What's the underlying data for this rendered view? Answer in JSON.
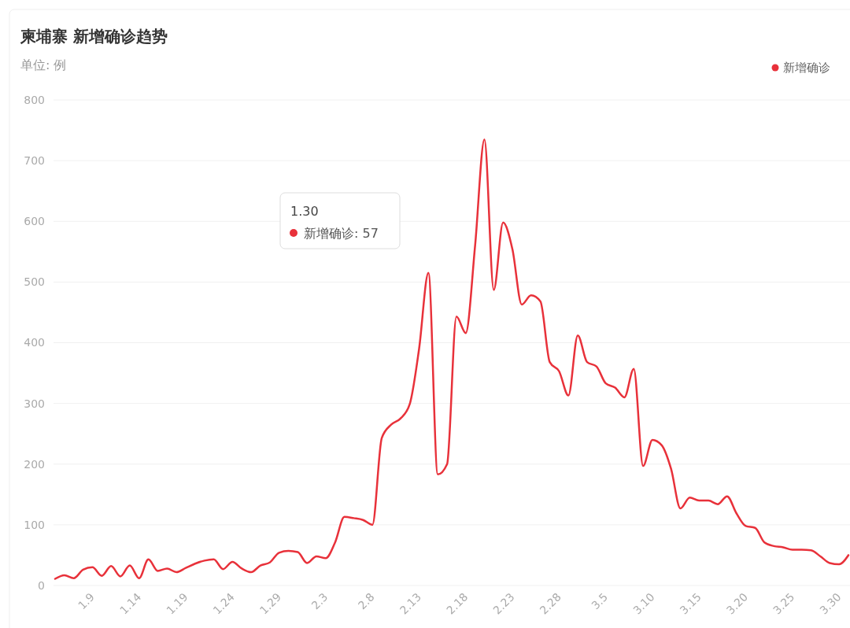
{
  "chart_data": {
    "type": "line",
    "title": "柬埔寨 新增确诊趋势",
    "subtitle": "单位: 例",
    "categories": [
      null,
      null,
      null,
      null,
      "1.9",
      null,
      null,
      null,
      null,
      "1.14",
      null,
      null,
      null,
      null,
      "1.19",
      null,
      null,
      null,
      null,
      "1.24",
      null,
      null,
      null,
      null,
      "1.29",
      null,
      null,
      null,
      null,
      "2.3",
      null,
      null,
      null,
      null,
      "2.8",
      null,
      null,
      null,
      null,
      "2.13",
      null,
      null,
      null,
      null,
      "2.18",
      null,
      null,
      null,
      null,
      "2.23",
      null,
      null,
      null,
      null,
      "2.28",
      null,
      null,
      null,
      null,
      "3.5",
      null,
      null,
      null,
      null,
      "3.10",
      null,
      null,
      null,
      null,
      "3.15",
      null,
      null,
      null,
      null,
      "3.20",
      null,
      null,
      null,
      null,
      "3.25",
      null,
      null,
      null,
      null,
      "3.30",
      null
    ],
    "series": [
      {
        "name": "新增确诊",
        "color": "#e8313a",
        "values": [
          11,
          17,
          12,
          26,
          30,
          16,
          32,
          15,
          33,
          12,
          43,
          24,
          28,
          22,
          29,
          36,
          41,
          43,
          27,
          39,
          28,
          22,
          33,
          38,
          54,
          57,
          55,
          37,
          48,
          45,
          71,
          113,
          111,
          108,
          100,
          243,
          265,
          275,
          299,
          390,
          515,
          183,
          200,
          443,
          416,
          560,
          735,
          487,
          598,
          554,
          463,
          478,
          468,
          368,
          353,
          313,
          412,
          368,
          361,
          333,
          326,
          310,
          357,
          197,
          240,
          231,
          192,
          127,
          145,
          140,
          140,
          134,
          147,
          119,
          98,
          95,
          71,
          65,
          63,
          59,
          59,
          58,
          48,
          37,
          35,
          50
        ]
      }
    ],
    "ylim": [
      0,
      800
    ],
    "yticks": [
      0,
      100,
      200,
      300,
      400,
      500,
      600,
      700,
      800
    ],
    "grid": "y",
    "legend": "top right",
    "marker": "none",
    "line_style": "solid",
    "annotations": [
      "1.30",
      "新增确诊: 57"
    ]
  }
}
